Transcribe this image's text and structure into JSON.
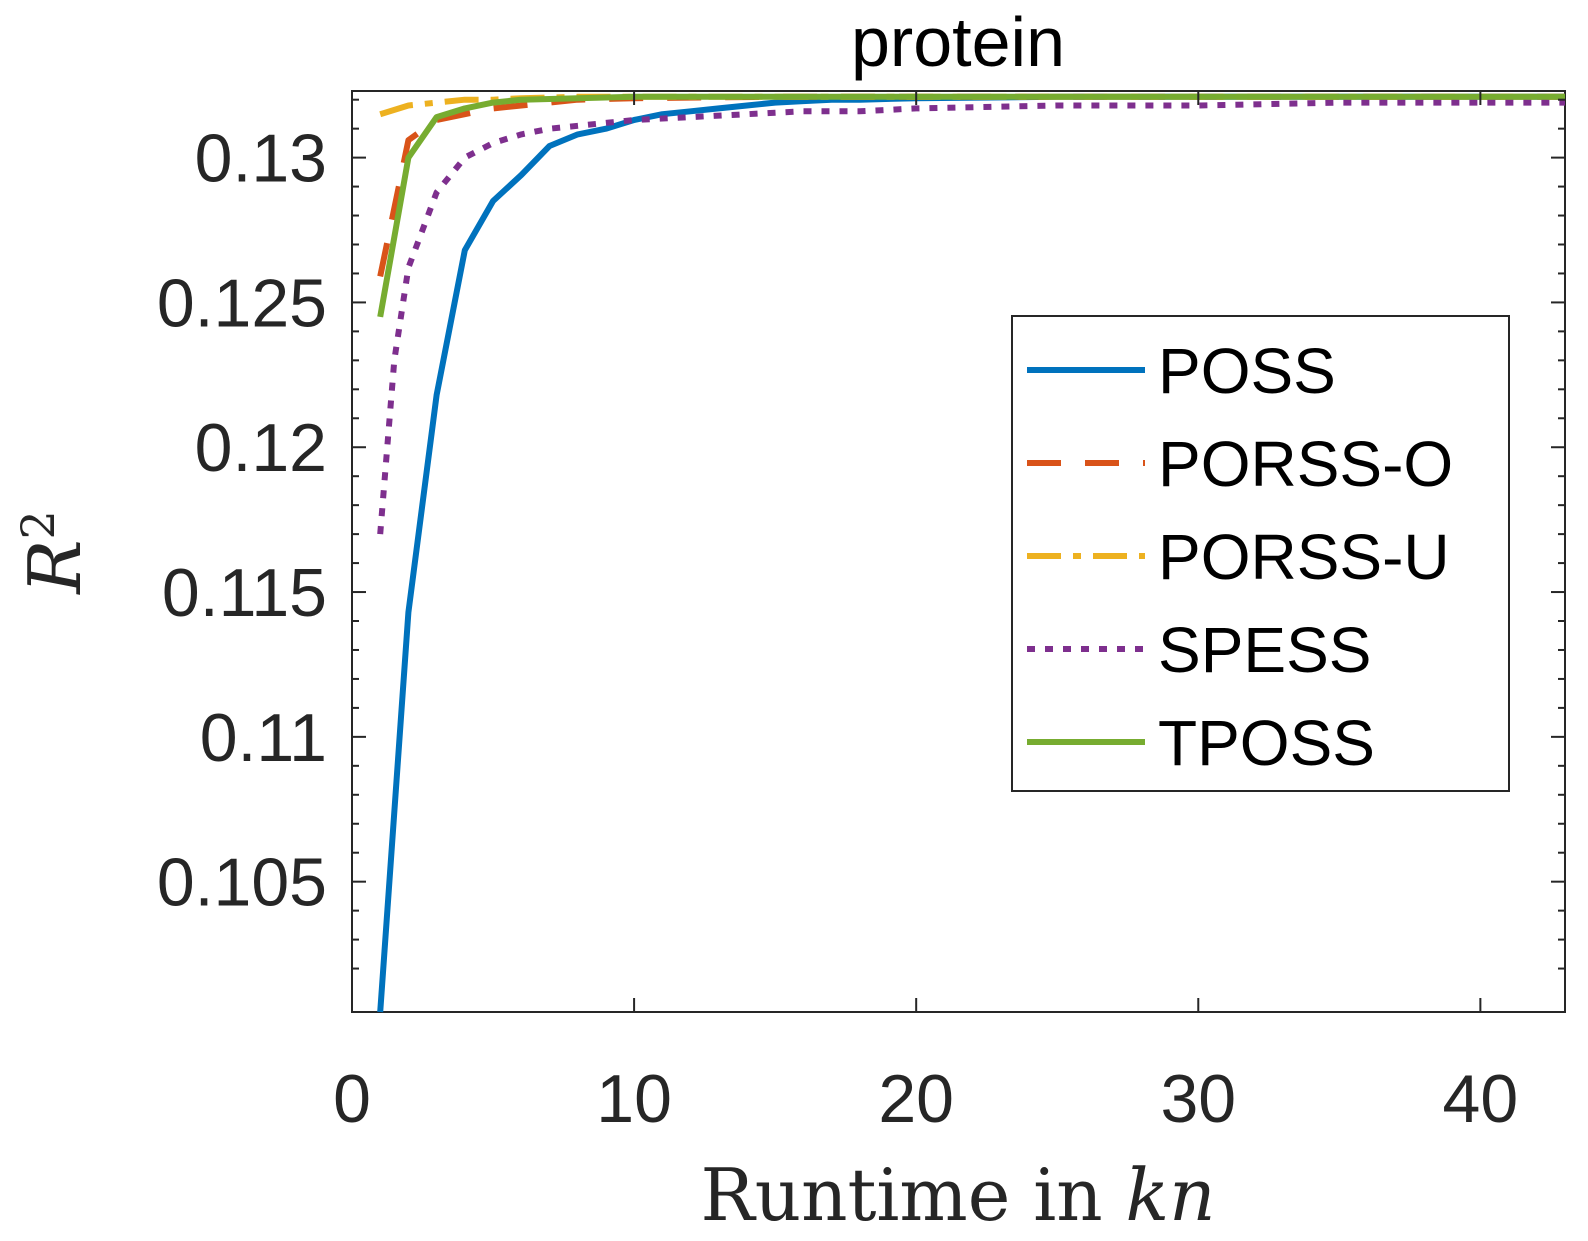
{
  "chart_data": {
    "type": "line",
    "title": "protein",
    "xlabel_prefix": "Runtime in ",
    "xlabel_math": "kn",
    "ylabel_base": "R",
    "ylabel_sup": "2",
    "xlim": [
      0,
      43
    ],
    "ylim": [
      0.1005,
      0.1323
    ],
    "xticks": [
      0,
      10,
      20,
      30,
      40
    ],
    "xtick_labels": [
      "0",
      "10",
      "20",
      "30",
      "40"
    ],
    "yticks": [
      0.105,
      0.11,
      0.115,
      0.12,
      0.125,
      0.13
    ],
    "ytick_labels": [
      "0.105",
      "0.11",
      "0.115",
      "0.12",
      "0.125",
      "0.13"
    ],
    "grid": false,
    "legend_position": "right",
    "series": [
      {
        "name": "POSS",
        "color": "#0072BD",
        "style": "solid",
        "x": [
          1,
          2,
          3,
          4,
          5,
          6,
          7,
          8,
          9,
          10,
          11,
          12,
          13,
          14,
          15,
          16,
          17,
          18,
          20,
          25,
          30,
          35,
          40,
          43
        ],
        "y": [
          0.1005,
          0.1143,
          0.1218,
          0.1268,
          0.1285,
          0.1294,
          0.1304,
          0.1308,
          0.131,
          0.1313,
          0.1315,
          0.1316,
          0.1317,
          0.1318,
          0.1319,
          0.13195,
          0.132,
          0.132,
          0.13205,
          0.1321,
          0.1321,
          0.1321,
          0.1321,
          0.1321
        ]
      },
      {
        "name": "PORSS-O",
        "color": "#D95319",
        "style": "dashed",
        "x": [
          1,
          2,
          3,
          4,
          5,
          6,
          7,
          8,
          10,
          15,
          20,
          30,
          43
        ],
        "y": [
          0.1259,
          0.1306,
          0.1313,
          0.1315,
          0.1317,
          0.1318,
          0.1319,
          0.132,
          0.13205,
          0.1321,
          0.1321,
          0.1321,
          0.1321
        ]
      },
      {
        "name": "PORSS-U",
        "color": "#EDB120",
        "style": "dashdot",
        "x": [
          1,
          2,
          3,
          4,
          5,
          6,
          8,
          10,
          15,
          20,
          30,
          43
        ],
        "y": [
          0.1315,
          0.1318,
          0.1319,
          0.132,
          0.132,
          0.13205,
          0.1321,
          0.1321,
          0.1321,
          0.1321,
          0.1321,
          0.1321
        ]
      },
      {
        "name": "SPESS",
        "color": "#7E2F8E",
        "style": "dotted",
        "x": [
          1,
          1.5,
          2,
          3,
          4,
          5,
          6,
          7,
          8,
          9,
          10,
          12,
          14,
          16,
          18,
          20,
          25,
          30,
          35,
          40,
          43
        ],
        "y": [
          0.117,
          0.123,
          0.1262,
          0.1288,
          0.13,
          0.1305,
          0.1308,
          0.131,
          0.1311,
          0.1312,
          0.1313,
          0.1314,
          0.1315,
          0.1316,
          0.1316,
          0.1317,
          0.1318,
          0.1318,
          0.1319,
          0.1319,
          0.1319
        ]
      },
      {
        "name": "TPOSS",
        "color": "#77AC30",
        "style": "solid",
        "x": [
          1,
          2,
          3,
          4,
          5,
          6,
          8,
          10,
          15,
          20,
          30,
          43
        ],
        "y": [
          0.1245,
          0.13,
          0.1314,
          0.1317,
          0.1319,
          0.132,
          0.13205,
          0.1321,
          0.1321,
          0.1321,
          0.1321,
          0.1321
        ]
      }
    ]
  }
}
